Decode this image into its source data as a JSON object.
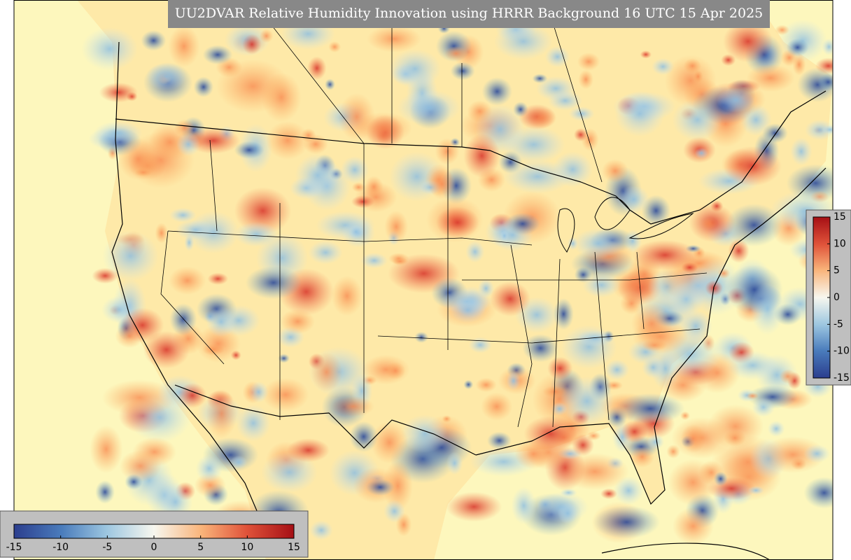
{
  "title": "UU2DVAR Relative Humidity Innovation using HRRR Background 16 UTC 15 Apr 2025",
  "colorbar_right": {
    "lim": [
      -15,
      15
    ],
    "ticks": [
      15,
      10,
      5,
      0,
      -5,
      -10,
      -15
    ]
  },
  "colorbar_bottom": {
    "lim": [
      -15,
      15
    ],
    "ticks": [
      -15,
      -10,
      -5,
      0,
      5,
      10,
      15
    ]
  }
}
